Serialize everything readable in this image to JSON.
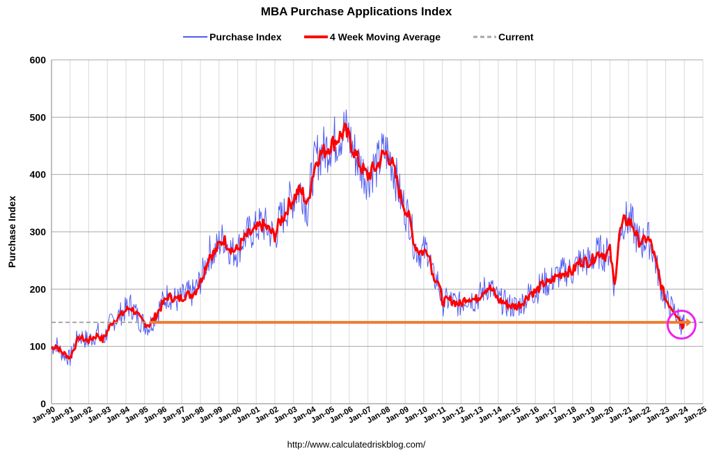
{
  "chart_data": {
    "type": "line",
    "title": "MBA Purchase Applications Index",
    "ylabel": "Purchase Index",
    "xlabel": "",
    "ylim": [
      0,
      600
    ],
    "y_ticks": [
      "0",
      "100",
      "200",
      "300",
      "400",
      "500",
      "600"
    ],
    "x_ticks": [
      "Jan-90",
      "Jan-91",
      "Jan-92",
      "Jan-93",
      "Jan-94",
      "Jan-95",
      "Jan-96",
      "Jan-97",
      "Jan-98",
      "Jan-99",
      "Jan-00",
      "Jan-01",
      "Jan-02",
      "Jan-03",
      "Jan-04",
      "Jan-05",
      "Jan-06",
      "Jan-07",
      "Jan-08",
      "Jan-09",
      "Jan-10",
      "Jan-11",
      "Jan-12",
      "Jan-13",
      "Jan-14",
      "Jan-15",
      "Jan-16",
      "Jan-17",
      "Jan-18",
      "Jan-19",
      "Jan-20",
      "Jan-21",
      "Jan-22",
      "Jan-23",
      "Jan-24",
      "Jan-25"
    ],
    "xlim": [
      1990,
      2025
    ],
    "grid": true,
    "legend_position": "top-center",
    "source": "http://www.calculatedriskblog.com/",
    "colors": {
      "purchase_index": "#4f5bf0",
      "moving_average": "#ff0000",
      "current": "#a6a6a6",
      "current_highlight": "#ed7d31",
      "circle": "#ee22ee"
    },
    "series": [
      {
        "name": "Purchase Index",
        "points": [
          [
            1990.0,
            97
          ],
          [
            1990.25,
            105
          ],
          [
            1990.5,
            90
          ],
          [
            1990.75,
            85
          ],
          [
            1991.0,
            78
          ],
          [
            1991.2,
            100
          ],
          [
            1991.5,
            120
          ],
          [
            1991.8,
            113
          ],
          [
            1992.0,
            110
          ],
          [
            1992.25,
            118
          ],
          [
            1992.5,
            124
          ],
          [
            1992.75,
            108
          ],
          [
            1993.0,
            128
          ],
          [
            1993.25,
            145
          ],
          [
            1993.5,
            150
          ],
          [
            1993.75,
            158
          ],
          [
            1994.0,
            165
          ],
          [
            1994.25,
            172
          ],
          [
            1994.5,
            160
          ],
          [
            1994.75,
            145
          ],
          [
            1995.0,
            140
          ],
          [
            1995.25,
            135
          ],
          [
            1995.5,
            150
          ],
          [
            1995.75,
            165
          ],
          [
            1996.0,
            178
          ],
          [
            1996.25,
            190
          ],
          [
            1996.5,
            185
          ],
          [
            1996.75,
            180
          ],
          [
            1997.0,
            185
          ],
          [
            1997.25,
            193
          ],
          [
            1997.5,
            190
          ],
          [
            1997.75,
            200
          ],
          [
            1998.0,
            215
          ],
          [
            1998.25,
            240
          ],
          [
            1998.5,
            265
          ],
          [
            1998.75,
            262
          ],
          [
            1999.0,
            280
          ],
          [
            1999.25,
            290
          ],
          [
            1999.5,
            275
          ],
          [
            1999.75,
            265
          ],
          [
            2000.0,
            268
          ],
          [
            2000.25,
            285
          ],
          [
            2000.5,
            295
          ],
          [
            2000.75,
            300
          ],
          [
            2001.0,
            305
          ],
          [
            2001.25,
            315
          ],
          [
            2001.5,
            310
          ],
          [
            2001.75,
            300
          ],
          [
            2002.0,
            290
          ],
          [
            2002.25,
            320
          ],
          [
            2002.5,
            330
          ],
          [
            2002.75,
            350
          ],
          [
            2003.0,
            360
          ],
          [
            2003.25,
            375
          ],
          [
            2003.5,
            370
          ],
          [
            2003.75,
            340
          ],
          [
            2004.0,
            400
          ],
          [
            2004.25,
            430
          ],
          [
            2004.5,
            440
          ],
          [
            2004.75,
            445
          ],
          [
            2005.0,
            455
          ],
          [
            2005.25,
            460
          ],
          [
            2005.5,
            470
          ],
          [
            2005.75,
            480
          ],
          [
            2006.0,
            465
          ],
          [
            2006.25,
            440
          ],
          [
            2006.5,
            420
          ],
          [
            2006.75,
            405
          ],
          [
            2007.0,
            395
          ],
          [
            2007.25,
            410
          ],
          [
            2007.5,
            415
          ],
          [
            2007.75,
            435
          ],
          [
            2008.0,
            440
          ],
          [
            2008.25,
            425
          ],
          [
            2008.5,
            395
          ],
          [
            2008.75,
            360
          ],
          [
            2009.0,
            340
          ],
          [
            2009.25,
            320
          ],
          [
            2009.5,
            275
          ],
          [
            2009.75,
            265
          ],
          [
            2010.0,
            265
          ],
          [
            2010.25,
            270
          ],
          [
            2010.5,
            220
          ],
          [
            2010.75,
            215
          ],
          [
            2011.0,
            175
          ],
          [
            2011.25,
            180
          ],
          [
            2011.5,
            180
          ],
          [
            2011.75,
            175
          ],
          [
            2012.0,
            172
          ],
          [
            2012.25,
            185
          ],
          [
            2012.5,
            186
          ],
          [
            2012.75,
            180
          ],
          [
            2013.0,
            188
          ],
          [
            2013.25,
            200
          ],
          [
            2013.5,
            205
          ],
          [
            2013.75,
            195
          ],
          [
            2014.0,
            180
          ],
          [
            2014.25,
            178
          ],
          [
            2014.5,
            172
          ],
          [
            2014.75,
            170
          ],
          [
            2015.0,
            170
          ],
          [
            2015.25,
            175
          ],
          [
            2015.5,
            185
          ],
          [
            2015.75,
            195
          ],
          [
            2016.0,
            195
          ],
          [
            2016.25,
            205
          ],
          [
            2016.5,
            212
          ],
          [
            2016.75,
            210
          ],
          [
            2017.0,
            220
          ],
          [
            2017.25,
            225
          ],
          [
            2017.5,
            230
          ],
          [
            2017.75,
            232
          ],
          [
            2018.0,
            230
          ],
          [
            2018.25,
            245
          ],
          [
            2018.5,
            250
          ],
          [
            2018.75,
            248
          ],
          [
            2019.0,
            248
          ],
          [
            2019.25,
            262
          ],
          [
            2019.5,
            265
          ],
          [
            2019.75,
            258
          ],
          [
            2020.0,
            270
          ],
          [
            2020.25,
            200
          ],
          [
            2020.5,
            300
          ],
          [
            2020.75,
            320
          ],
          [
            2021.0,
            320
          ],
          [
            2021.25,
            310
          ],
          [
            2021.5,
            285
          ],
          [
            2021.75,
            280
          ],
          [
            2022.0,
            292
          ],
          [
            2022.25,
            275
          ],
          [
            2022.5,
            240
          ],
          [
            2022.75,
            205
          ],
          [
            2023.0,
            180
          ],
          [
            2023.25,
            170
          ],
          [
            2023.5,
            160
          ],
          [
            2023.75,
            145
          ],
          [
            2023.9,
            135
          ],
          [
            2024.0,
            140
          ]
        ]
      },
      {
        "name": "4 Week Moving Average",
        "points": [
          [
            1990.0,
            96
          ],
          [
            1990.25,
            102
          ],
          [
            1990.5,
            91
          ],
          [
            1990.75,
            86
          ],
          [
            1991.0,
            80
          ],
          [
            1991.2,
            97
          ],
          [
            1991.5,
            116
          ],
          [
            1991.8,
            112
          ],
          [
            1992.0,
            110
          ],
          [
            1992.25,
            116
          ],
          [
            1992.5,
            120
          ],
          [
            1992.75,
            111
          ],
          [
            1993.0,
            126
          ],
          [
            1993.25,
            142
          ],
          [
            1993.5,
            149
          ],
          [
            1993.75,
            155
          ],
          [
            1994.0,
            163
          ],
          [
            1994.25,
            168
          ],
          [
            1994.5,
            160
          ],
          [
            1994.75,
            148
          ],
          [
            1995.0,
            141
          ],
          [
            1995.25,
            138
          ],
          [
            1995.5,
            148
          ],
          [
            1995.75,
            162
          ],
          [
            1996.0,
            175
          ],
          [
            1996.25,
            187
          ],
          [
            1996.5,
            185
          ],
          [
            1996.75,
            182
          ],
          [
            1997.0,
            185
          ],
          [
            1997.25,
            191
          ],
          [
            1997.5,
            190
          ],
          [
            1997.75,
            198
          ],
          [
            1998.0,
            213
          ],
          [
            1998.25,
            236
          ],
          [
            1998.5,
            260
          ],
          [
            1998.75,
            262
          ],
          [
            1999.0,
            277
          ],
          [
            1999.25,
            287
          ],
          [
            1999.5,
            276
          ],
          [
            1999.75,
            267
          ],
          [
            2000.0,
            269
          ],
          [
            2000.25,
            283
          ],
          [
            2000.5,
            293
          ],
          [
            2000.75,
            298
          ],
          [
            2001.0,
            303
          ],
          [
            2001.25,
            312
          ],
          [
            2001.5,
            309
          ],
          [
            2001.75,
            301
          ],
          [
            2002.0,
            293
          ],
          [
            2002.25,
            317
          ],
          [
            2002.5,
            328
          ],
          [
            2002.75,
            347
          ],
          [
            2003.0,
            357
          ],
          [
            2003.25,
            371
          ],
          [
            2003.5,
            368
          ],
          [
            2003.75,
            345
          ],
          [
            2004.0,
            395
          ],
          [
            2004.25,
            426
          ],
          [
            2004.5,
            437
          ],
          [
            2004.75,
            443
          ],
          [
            2005.0,
            452
          ],
          [
            2005.25,
            458
          ],
          [
            2005.5,
            467
          ],
          [
            2005.75,
            476
          ],
          [
            2006.0,
            463
          ],
          [
            2006.25,
            441
          ],
          [
            2006.5,
            422
          ],
          [
            2006.75,
            407
          ],
          [
            2007.0,
            397
          ],
          [
            2007.25,
            408
          ],
          [
            2007.5,
            414
          ],
          [
            2007.75,
            432
          ],
          [
            2008.0,
            437
          ],
          [
            2008.25,
            424
          ],
          [
            2008.5,
            396
          ],
          [
            2008.75,
            362
          ],
          [
            2009.0,
            341
          ],
          [
            2009.25,
            320
          ],
          [
            2009.5,
            278
          ],
          [
            2009.75,
            266
          ],
          [
            2010.0,
            265
          ],
          [
            2010.25,
            268
          ],
          [
            2010.5,
            224
          ],
          [
            2010.75,
            215
          ],
          [
            2011.0,
            178
          ],
          [
            2011.25,
            180
          ],
          [
            2011.5,
            180
          ],
          [
            2011.75,
            176
          ],
          [
            2012.0,
            173
          ],
          [
            2012.25,
            184
          ],
          [
            2012.5,
            185
          ],
          [
            2012.75,
            181
          ],
          [
            2013.0,
            188
          ],
          [
            2013.25,
            199
          ],
          [
            2013.5,
            203
          ],
          [
            2013.75,
            195
          ],
          [
            2014.0,
            181
          ],
          [
            2014.25,
            178
          ],
          [
            2014.5,
            173
          ],
          [
            2014.75,
            170
          ],
          [
            2015.0,
            170
          ],
          [
            2015.25,
            175
          ],
          [
            2015.5,
            184
          ],
          [
            2015.75,
            194
          ],
          [
            2016.0,
            195
          ],
          [
            2016.25,
            204
          ],
          [
            2016.5,
            211
          ],
          [
            2016.75,
            210
          ],
          [
            2017.0,
            219
          ],
          [
            2017.25,
            224
          ],
          [
            2017.5,
            229
          ],
          [
            2017.75,
            231
          ],
          [
            2018.0,
            230
          ],
          [
            2018.25,
            244
          ],
          [
            2018.5,
            249
          ],
          [
            2018.75,
            248
          ],
          [
            2019.0,
            248
          ],
          [
            2019.25,
            260
          ],
          [
            2019.5,
            264
          ],
          [
            2019.75,
            259
          ],
          [
            2020.0,
            268
          ],
          [
            2020.25,
            205
          ],
          [
            2020.5,
            295
          ],
          [
            2020.75,
            318
          ],
          [
            2021.0,
            319
          ],
          [
            2021.25,
            310
          ],
          [
            2021.5,
            286
          ],
          [
            2021.75,
            281
          ],
          [
            2022.0,
            290
          ],
          [
            2022.25,
            276
          ],
          [
            2022.5,
            242
          ],
          [
            2022.75,
            207
          ],
          [
            2023.0,
            182
          ],
          [
            2023.25,
            171
          ],
          [
            2023.5,
            161
          ],
          [
            2023.75,
            147
          ],
          [
            2023.9,
            137
          ],
          [
            2024.0,
            141
          ]
        ]
      },
      {
        "name": "Current",
        "value": 142
      }
    ]
  }
}
